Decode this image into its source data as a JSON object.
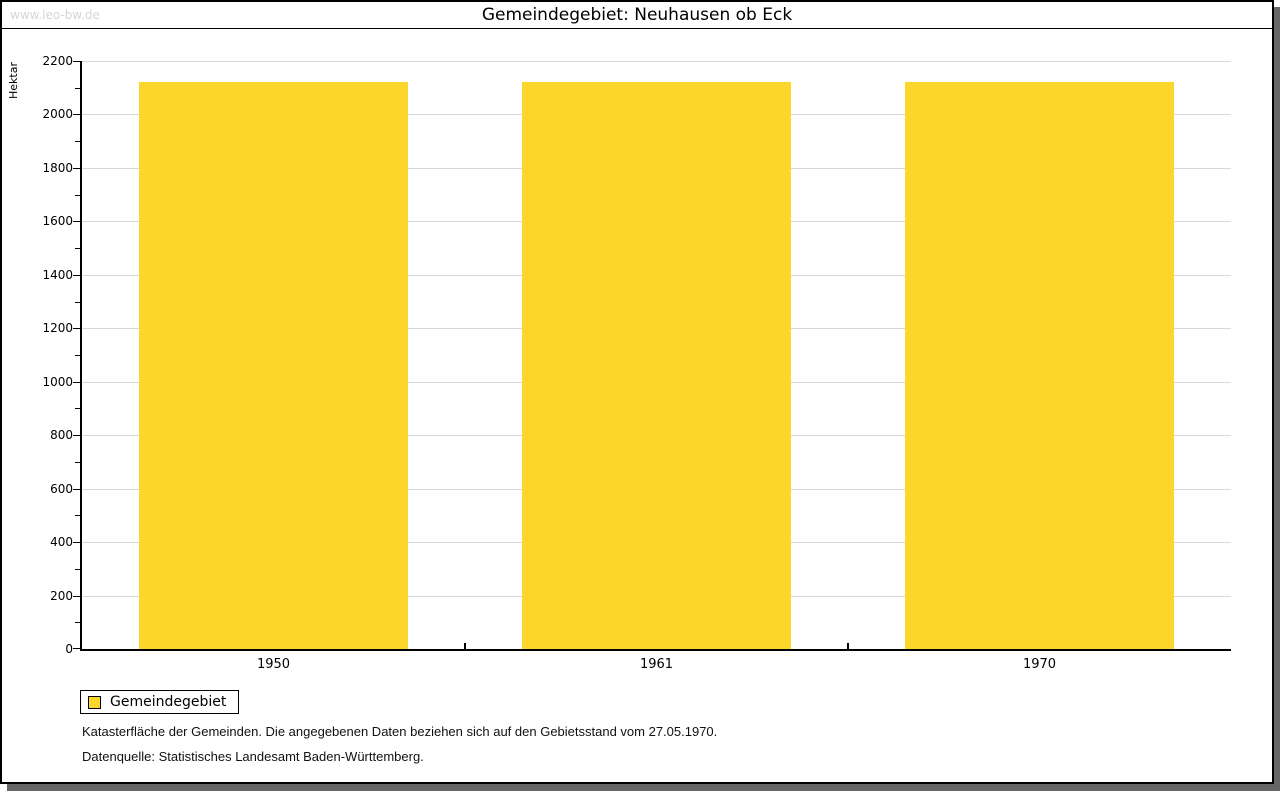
{
  "watermark": "www.leo-bw.de",
  "title": "Gemeindegebiet: Neuhausen ob Eck",
  "legend": {
    "label": "Gemeindegebiet",
    "swatch_color": "#FDD62C"
  },
  "footnotes": [
    "Katasterfläche der Gemeinden. Die angegebenen Daten beziehen sich auf den Gebietsstand vom 27.05.1970.",
    "Datenquelle: Statistisches Landesamt Baden-Württemberg."
  ],
  "colors": {
    "bar": "#FDD62C",
    "grid": "#d8d8d8",
    "axis": "#000000",
    "shadow": "#666666",
    "watermark": "#d6d6d6"
  },
  "chart_data": {
    "type": "bar",
    "title": "Gemeindegebiet: Neuhausen ob Eck",
    "categories": [
      "1950",
      "1961",
      "1970"
    ],
    "series": [
      {
        "name": "Gemeindegebiet",
        "values": [
          2120,
          2120,
          2120
        ]
      }
    ],
    "xlabel": "",
    "ylabel": "Hektar",
    "ylim": [
      0,
      2200
    ],
    "ytick_step": 200,
    "yminor_step": 100,
    "grid": true,
    "legend_position": "bottom-left",
    "bar_color": "#FDD62C"
  }
}
